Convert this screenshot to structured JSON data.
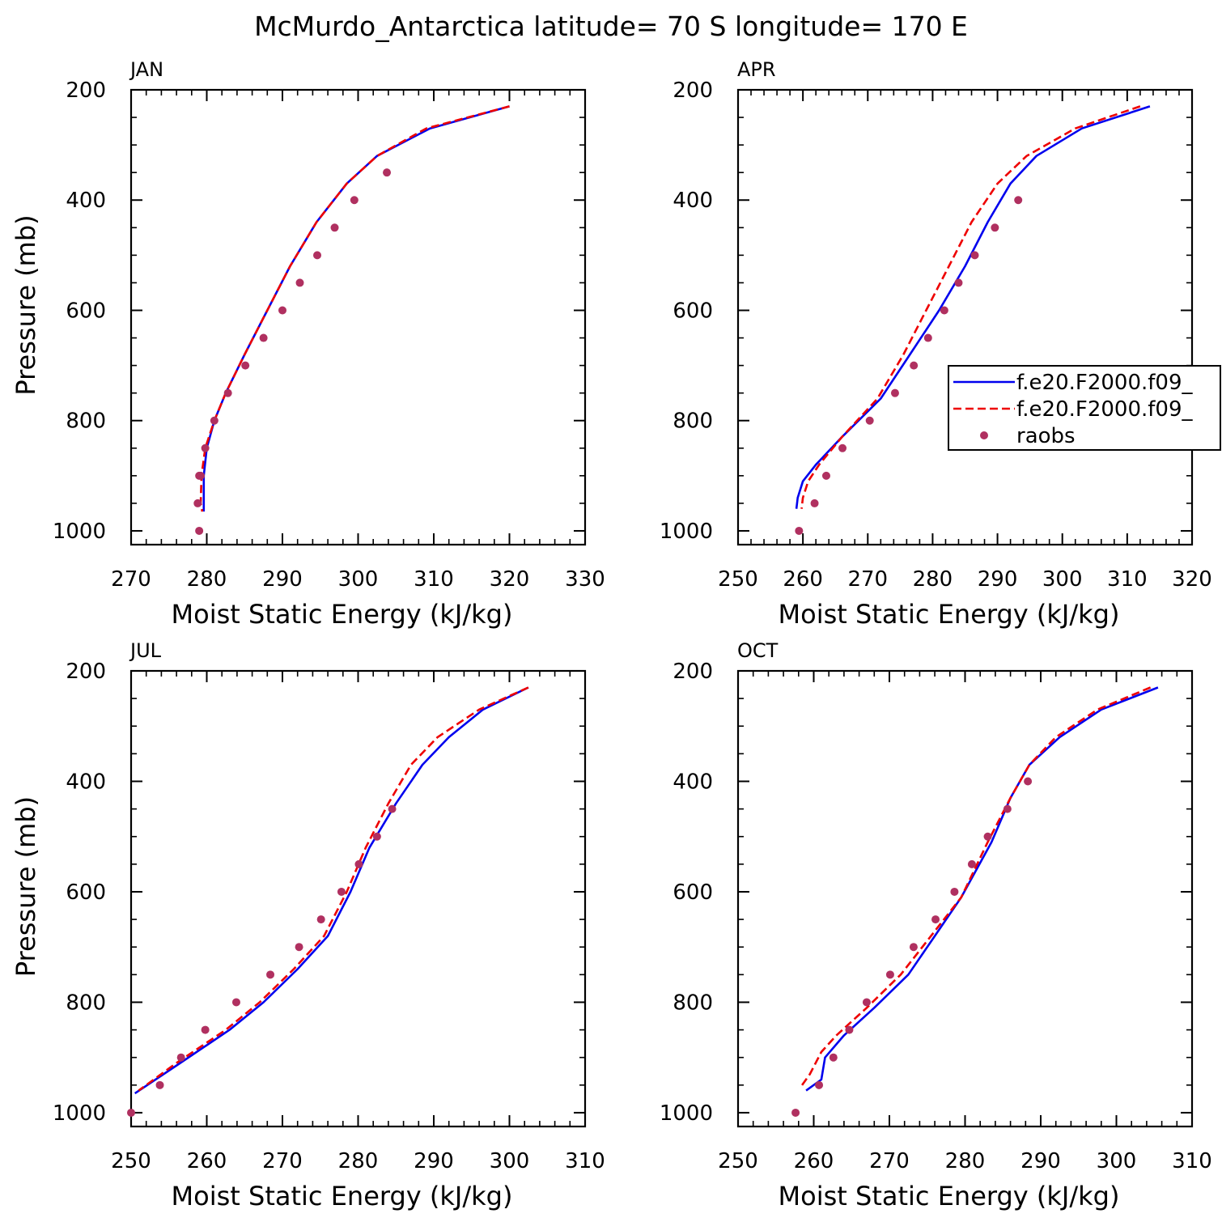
{
  "title": "McMurdo_Antarctica  latitude= 70 S longitude= 170 E",
  "colors": {
    "series1": "#0000ee",
    "series2": "#ee0000",
    "obs": "#b03060",
    "axis": "#000000"
  },
  "legend": {
    "entries": [
      {
        "name": "f.e20.F2000.f09_",
        "style": "solid",
        "color": "#0000ee"
      },
      {
        "name": "f.e20.F2000.f09_",
        "style": "dashed",
        "color": "#ee0000"
      },
      {
        "name": "raobs",
        "style": "marker",
        "color": "#b03060"
      }
    ],
    "placement": "right-of-APR-panel"
  },
  "chart_data": [
    {
      "type": "line",
      "label": "JAN",
      "xlabel": "Moist Static Energy (kJ/kg)",
      "ylabel": "Pressure (mb)",
      "xlim": [
        270,
        330
      ],
      "ylim": [
        200,
        1025
      ],
      "y_inverted": true,
      "xticks": [
        270,
        280,
        290,
        300,
        310,
        320,
        330
      ],
      "yticks": [
        200,
        400,
        600,
        800,
        1000
      ],
      "series": [
        {
          "name": "f.e20.F2000.f09_",
          "style": "solid",
          "x": [
            320,
            309.5,
            302.5,
            298.5,
            294.5,
            291,
            288,
            285,
            282.5,
            281,
            280,
            279.6,
            279.6,
            279.6
          ],
          "y": [
            230,
            270,
            320,
            370,
            440,
            520,
            600,
            680,
            750,
            800,
            850,
            900,
            950,
            965
          ]
        },
        {
          "name": "f.e20.F2000.f09_",
          "style": "dashed",
          "x": [
            320,
            309,
            302.5,
            298.5,
            294.5,
            291,
            288,
            285,
            282.5,
            281,
            279.8,
            279.3,
            279.2,
            279.4
          ],
          "y": [
            230,
            270,
            320,
            370,
            440,
            520,
            600,
            680,
            750,
            800,
            850,
            900,
            950,
            965
          ]
        },
        {
          "name": "raobs",
          "style": "marker",
          "x": [
            303.8,
            299.5,
            296.9,
            294.6,
            292.3,
            290,
            287.5,
            285.1,
            282.8,
            281,
            279.8,
            279.2,
            279,
            278.8,
            279
          ],
          "y": [
            350,
            400,
            450,
            500,
            550,
            600,
            650,
            700,
            750,
            800,
            850,
            900,
            900,
            950,
            1000
          ]
        }
      ]
    },
    {
      "type": "line",
      "label": "APR",
      "xlabel": "Moist Static Energy (kJ/kg)",
      "ylabel": "",
      "xlim": [
        250,
        320
      ],
      "ylim": [
        200,
        1025
      ],
      "y_inverted": true,
      "xticks": [
        250,
        260,
        270,
        280,
        290,
        300,
        310,
        320
      ],
      "yticks": [
        200,
        400,
        600,
        800,
        1000
      ],
      "series": [
        {
          "name": "f.e20.F2000.f09_",
          "style": "solid",
          "x": [
            313.5,
            303,
            296,
            292,
            288.5,
            285,
            281,
            276.5,
            272,
            266,
            262,
            260,
            259.2,
            259
          ],
          "y": [
            230,
            270,
            320,
            370,
            440,
            520,
            600,
            680,
            760,
            830,
            880,
            910,
            940,
            960
          ]
        },
        {
          "name": "f.e20.F2000.f09_",
          "style": "dashed",
          "x": [
            312,
            302,
            294.5,
            290,
            286,
            282.5,
            279,
            275.5,
            271.5,
            266,
            262.5,
            260.8,
            260,
            259.8
          ],
          "y": [
            230,
            270,
            320,
            370,
            440,
            520,
            600,
            680,
            760,
            830,
            880,
            910,
            940,
            960
          ]
        },
        {
          "name": "raobs",
          "style": "marker",
          "x": [
            293.2,
            289.6,
            286.5,
            284,
            281.8,
            279.3,
            277.1,
            274.2,
            270.3,
            266.1,
            263.6,
            261.8,
            259.4
          ],
          "y": [
            400,
            450,
            500,
            550,
            600,
            650,
            700,
            750,
            800,
            850,
            900,
            950,
            1000
          ]
        }
      ]
    },
    {
      "type": "line",
      "label": "JUL",
      "xlabel": "Moist Static Energy (kJ/kg)",
      "ylabel": "Pressure (mb)",
      "xlim": [
        250,
        310
      ],
      "ylim": [
        200,
        1025
      ],
      "y_inverted": true,
      "xticks": [
        250,
        260,
        270,
        280,
        290,
        300,
        310
      ],
      "yticks": [
        200,
        400,
        600,
        800,
        1000
      ],
      "series": [
        {
          "name": "f.e20.F2000.f09_",
          "style": "solid",
          "x": [
            302.5,
            296.5,
            292,
            288.5,
            285,
            281.5,
            279,
            276,
            272,
            267.5,
            263,
            256.5,
            250.5
          ],
          "y": [
            230,
            270,
            320,
            370,
            440,
            520,
            600,
            680,
            740,
            800,
            850,
            910,
            965
          ]
        },
        {
          "name": "f.e20.F2000.f09_",
          "style": "dashed",
          "x": [
            302.5,
            296,
            290.5,
            287,
            284,
            281,
            278.5,
            275.5,
            271.5,
            267,
            262.5,
            256,
            251
          ],
          "y": [
            230,
            270,
            320,
            370,
            440,
            520,
            600,
            680,
            740,
            800,
            850,
            910,
            960
          ]
        },
        {
          "name": "raobs",
          "style": "marker",
          "x": [
            284.5,
            282.5,
            280.1,
            277.8,
            275.1,
            272.2,
            268.4,
            263.9,
            259.8,
            256.6,
            253.8,
            250
          ],
          "y": [
            450,
            500,
            550,
            600,
            650,
            700,
            750,
            800,
            850,
            900,
            950,
            1000
          ]
        }
      ]
    },
    {
      "type": "line",
      "label": "OCT",
      "xlabel": "Moist Static Energy (kJ/kg)",
      "ylabel": "",
      "xlim": [
        250,
        310
      ],
      "ylim": [
        200,
        1025
      ],
      "y_inverted": true,
      "xticks": [
        250,
        260,
        270,
        280,
        290,
        300,
        310
      ],
      "yticks": [
        200,
        400,
        600,
        800,
        1000
      ],
      "series": [
        {
          "name": "f.e20.F2000.f09_",
          "style": "solid",
          "x": [
            305.5,
            298,
            292.5,
            288.5,
            286,
            283.5,
            279.5,
            276,
            272.5,
            268,
            264,
            261.5,
            261,
            259
          ],
          "y": [
            230,
            270,
            320,
            370,
            430,
            510,
            610,
            680,
            750,
            810,
            860,
            900,
            940,
            960
          ]
        },
        {
          "name": "f.e20.F2000.f09_",
          "style": "dashed",
          "x": [
            304.5,
            297.5,
            292,
            288.5,
            286,
            283,
            279.5,
            275.5,
            271.5,
            267,
            263,
            261,
            259.5,
            258.2
          ],
          "y": [
            230,
            270,
            320,
            370,
            430,
            510,
            610,
            680,
            750,
            810,
            860,
            890,
            930,
            955
          ]
        },
        {
          "name": "raobs",
          "style": "marker",
          "x": [
            288.3,
            285.6,
            283,
            280.9,
            278.6,
            276.1,
            273.2,
            270.1,
            267,
            264.7,
            262.6,
            260.7,
            257.6
          ],
          "y": [
            400,
            450,
            500,
            550,
            600,
            650,
            700,
            750,
            800,
            850,
            900,
            950,
            1000
          ]
        }
      ]
    }
  ]
}
